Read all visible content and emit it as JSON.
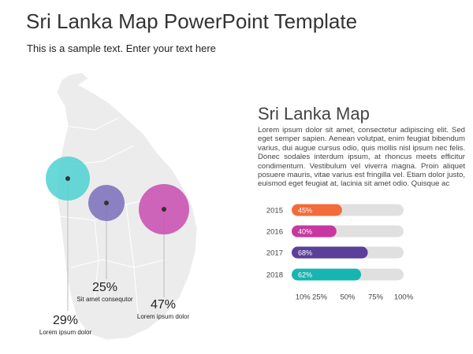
{
  "header": {
    "title": "Sri Lanka Map PowerPoint Template",
    "subtitle": "This is a sample text. Enter your text here"
  },
  "map": {
    "markers": [
      {
        "value": "29%",
        "label": "Lorem ipsum dolor",
        "color": "#4fd1d1"
      },
      {
        "value": "25%",
        "label": "Sit amet consequtor",
        "color": "#7a6fbb"
      },
      {
        "value": "47%",
        "label": "Lorem ipsum dolor",
        "color": "#c94bb2"
      }
    ]
  },
  "text": {
    "heading": "Sri Lanka  Map",
    "body": "Lorem ipsum dolor sit amet, consectetur adipiscing elit. Sed eget semper sapien. Aenean volutpat, enim feugiat bibendum varius, dui augue cursus odio, quis mollis nisl ipsum nec felis. Donec sodales interdum ipsum, at rhoncus meets efficitur condimentum. Vestibulum vel viverra magna. Proin aliquet posuere mauris, vitae varius est fringilla vel. Etiam dolor justo, euismod eget feugiat at, lacinia sit amet odio. Quisque ac"
  },
  "chart_data": {
    "type": "bar",
    "orientation": "horizontal",
    "categories": [
      "2015",
      "2016",
      "2017",
      "2018"
    ],
    "values": [
      45,
      40,
      68,
      62
    ],
    "value_labels": [
      "45%",
      "40%",
      "68%",
      "62%"
    ],
    "colors": [
      "#f26b3a",
      "#c8379f",
      "#5b3f99",
      "#17b5b0"
    ],
    "track_color": "#e0e0e0",
    "xlim": [
      0,
      100
    ],
    "xticks": [
      {
        "value": 10,
        "label": "10%"
      },
      {
        "value": 25,
        "label": "25%"
      },
      {
        "value": 50,
        "label": "50%"
      },
      {
        "value": 75,
        "label": "75%"
      },
      {
        "value": 100,
        "label": "100%"
      }
    ]
  }
}
